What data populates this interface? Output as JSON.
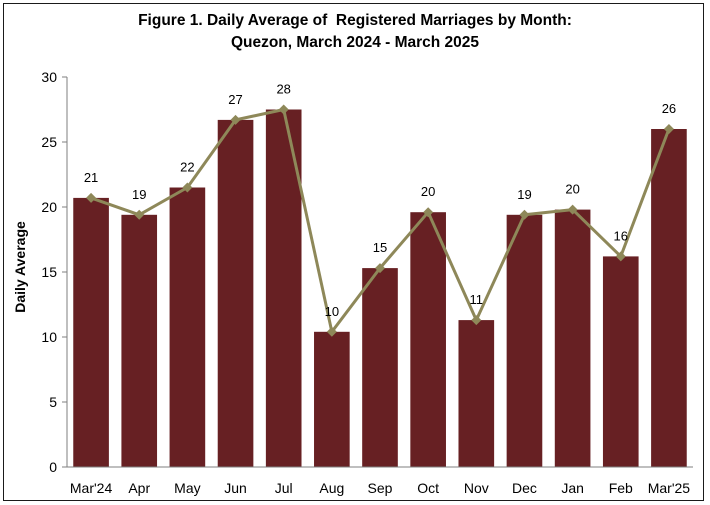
{
  "chart_data": {
    "type": "bar",
    "title": "Figure 1. Daily Average of  Registered Marriages by Month:",
    "subtitle": "Quezon, March 2024 - March 2025",
    "xlabel": "",
    "ylabel": "Daily Average",
    "ylim": [
      0,
      30
    ],
    "yticks": [
      "0",
      "5",
      "10",
      "15",
      "20",
      "25",
      "30"
    ],
    "grid": false,
    "categories": [
      "Mar'24",
      "Apr",
      "May",
      "Jun",
      "Jul",
      "Aug",
      "Sep",
      "Oct",
      "Nov",
      "Dec",
      "Jan",
      "Feb",
      "Mar'25"
    ],
    "values": [
      20.7,
      19.4,
      21.5,
      26.7,
      27.5,
      10.4,
      15.3,
      19.6,
      11.3,
      19.4,
      19.8,
      16.2,
      26.0
    ],
    "labels": [
      "21",
      "19",
      "22",
      "27",
      "28",
      "10",
      "15",
      "20",
      "11",
      "19",
      "20",
      "16",
      "26"
    ],
    "line_overlay": true,
    "colors": {
      "bar": "#672023",
      "line": "#8e8859",
      "marker": "#8e8859",
      "axis": "#7f7f7f"
    }
  }
}
